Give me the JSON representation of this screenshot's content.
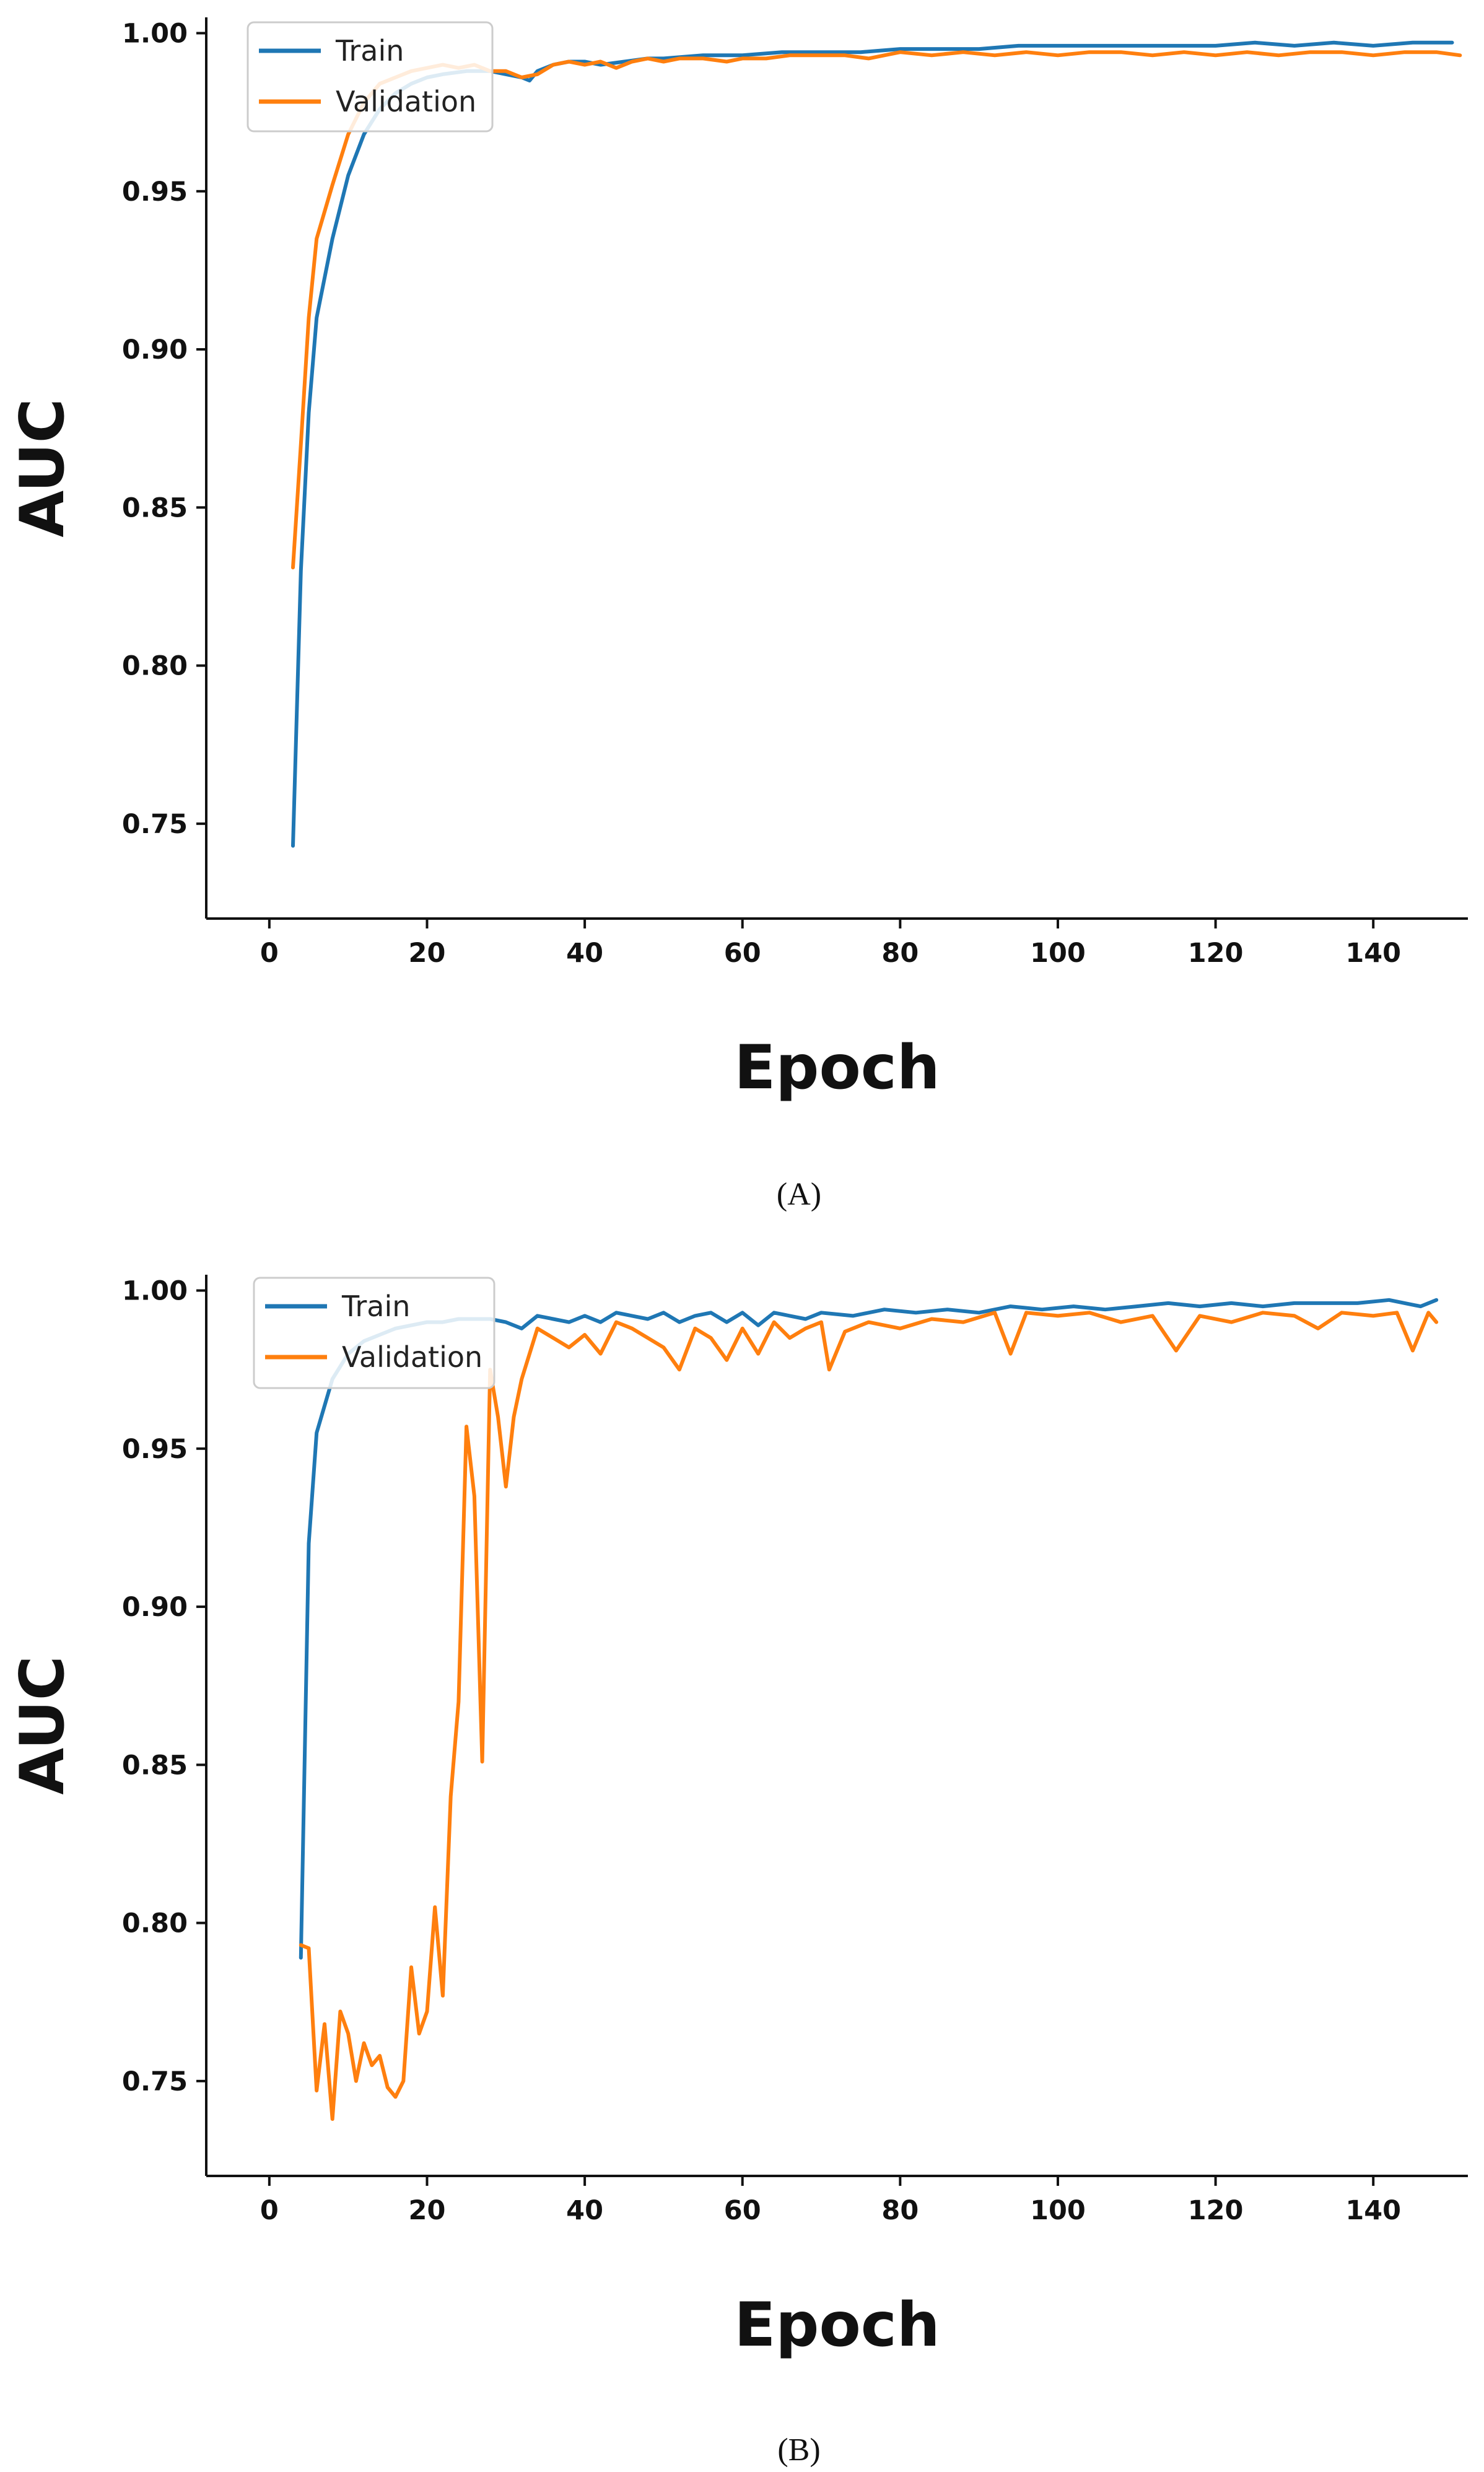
{
  "chart_data": [
    {
      "type": "line",
      "panel_label": "(A)",
      "xlabel": "Epoch",
      "ylabel": "AUC",
      "xlim": [
        -8,
        152
      ],
      "ylim": [
        0.72,
        1.005
      ],
      "xticks": [
        0,
        20,
        40,
        60,
        80,
        100,
        120,
        140
      ],
      "yticks": [
        0.75,
        0.8,
        0.85,
        0.9,
        0.95,
        1.0
      ],
      "legend_position": "top-left",
      "grid": false,
      "series": [
        {
          "name": "Train",
          "color": "#1f77b4",
          "x": [
            3,
            4,
            5,
            6,
            8,
            10,
            12,
            14,
            16,
            18,
            20,
            22,
            25,
            28,
            30,
            32,
            33,
            34,
            36,
            38,
            40,
            42,
            45,
            48,
            50,
            55,
            60,
            65,
            70,
            75,
            80,
            85,
            90,
            95,
            100,
            105,
            110,
            115,
            120,
            125,
            130,
            135,
            140,
            145,
            150
          ],
          "values": [
            0.743,
            0.83,
            0.88,
            0.91,
            0.935,
            0.955,
            0.968,
            0.976,
            0.981,
            0.984,
            0.986,
            0.987,
            0.988,
            0.988,
            0.987,
            0.986,
            0.985,
            0.988,
            0.99,
            0.991,
            0.991,
            0.99,
            0.991,
            0.992,
            0.992,
            0.993,
            0.993,
            0.994,
            0.994,
            0.994,
            0.995,
            0.995,
            0.995,
            0.996,
            0.996,
            0.996,
            0.996,
            0.996,
            0.996,
            0.997,
            0.996,
            0.997,
            0.996,
            0.997,
            0.997
          ]
        },
        {
          "name": "Validation",
          "color": "#ff7f0e",
          "x": [
            3,
            4,
            5,
            6,
            8,
            10,
            12,
            14,
            16,
            18,
            20,
            22,
            24,
            26,
            28,
            30,
            32,
            34,
            36,
            38,
            40,
            42,
            44,
            46,
            48,
            50,
            52,
            55,
            58,
            60,
            63,
            66,
            70,
            73,
            76,
            80,
            84,
            88,
            92,
            96,
            100,
            104,
            108,
            112,
            116,
            120,
            124,
            128,
            132,
            136,
            140,
            144,
            148,
            151
          ],
          "values": [
            0.831,
            0.87,
            0.91,
            0.935,
            0.952,
            0.968,
            0.978,
            0.984,
            0.986,
            0.988,
            0.989,
            0.99,
            0.989,
            0.99,
            0.988,
            0.988,
            0.986,
            0.987,
            0.99,
            0.991,
            0.99,
            0.991,
            0.989,
            0.991,
            0.992,
            0.991,
            0.992,
            0.992,
            0.991,
            0.992,
            0.992,
            0.993,
            0.993,
            0.993,
            0.992,
            0.994,
            0.993,
            0.994,
            0.993,
            0.994,
            0.993,
            0.994,
            0.994,
            0.993,
            0.994,
            0.993,
            0.994,
            0.993,
            0.994,
            0.994,
            0.993,
            0.994,
            0.994,
            0.993
          ]
        }
      ]
    },
    {
      "type": "line",
      "panel_label": "(B)",
      "xlabel": "Epoch",
      "ylabel": "AUC",
      "xlim": [
        -8,
        152
      ],
      "ylim": [
        0.72,
        1.005
      ],
      "xticks": [
        0,
        20,
        40,
        60,
        80,
        100,
        120,
        140
      ],
      "yticks": [
        0.75,
        0.8,
        0.85,
        0.9,
        0.95,
        1.0
      ],
      "legend_position": "top-left",
      "grid": false,
      "series": [
        {
          "name": "Train",
          "color": "#1f77b4",
          "x": [
            4,
            5,
            6,
            8,
            10,
            12,
            14,
            16,
            18,
            20,
            22,
            24,
            26,
            28,
            30,
            32,
            34,
            36,
            38,
            40,
            42,
            44,
            46,
            48,
            50,
            52,
            54,
            56,
            58,
            60,
            62,
            64,
            66,
            68,
            70,
            74,
            78,
            82,
            86,
            90,
            94,
            98,
            102,
            106,
            110,
            114,
            118,
            122,
            126,
            130,
            134,
            138,
            142,
            146,
            148
          ],
          "values": [
            0.789,
            0.92,
            0.955,
            0.972,
            0.98,
            0.984,
            0.986,
            0.988,
            0.989,
            0.99,
            0.99,
            0.991,
            0.991,
            0.991,
            0.99,
            0.988,
            0.992,
            0.991,
            0.99,
            0.992,
            0.99,
            0.993,
            0.992,
            0.991,
            0.993,
            0.99,
            0.992,
            0.993,
            0.99,
            0.993,
            0.989,
            0.993,
            0.992,
            0.991,
            0.993,
            0.992,
            0.994,
            0.993,
            0.994,
            0.993,
            0.995,
            0.994,
            0.995,
            0.994,
            0.995,
            0.996,
            0.995,
            0.996,
            0.995,
            0.996,
            0.996,
            0.996,
            0.997,
            0.995,
            0.997
          ]
        },
        {
          "name": "Validation",
          "color": "#ff7f0e",
          "x": [
            4,
            5,
            6,
            7,
            8,
            9,
            10,
            11,
            12,
            13,
            14,
            15,
            16,
            17,
            18,
            19,
            20,
            21,
            22,
            23,
            24,
            25,
            26,
            27,
            28,
            29,
            30,
            31,
            32,
            34,
            36,
            38,
            40,
            42,
            44,
            46,
            48,
            50,
            52,
            54,
            56,
            58,
            60,
            62,
            64,
            66,
            68,
            70,
            71,
            73,
            76,
            80,
            84,
            88,
            92,
            94,
            96,
            100,
            104,
            108,
            112,
            115,
            118,
            122,
            126,
            130,
            133,
            136,
            140,
            143,
            145,
            147,
            148
          ],
          "values": [
            0.793,
            0.792,
            0.747,
            0.768,
            0.738,
            0.772,
            0.765,
            0.75,
            0.762,
            0.755,
            0.758,
            0.748,
            0.745,
            0.75,
            0.786,
            0.765,
            0.772,
            0.805,
            0.777,
            0.84,
            0.87,
            0.957,
            0.935,
            0.851,
            0.975,
            0.96,
            0.938,
            0.96,
            0.972,
            0.988,
            0.985,
            0.982,
            0.986,
            0.98,
            0.99,
            0.988,
            0.985,
            0.982,
            0.975,
            0.988,
            0.985,
            0.978,
            0.988,
            0.98,
            0.99,
            0.985,
            0.988,
            0.99,
            0.975,
            0.987,
            0.99,
            0.988,
            0.991,
            0.99,
            0.993,
            0.98,
            0.993,
            0.992,
            0.993,
            0.99,
            0.992,
            0.981,
            0.992,
            0.99,
            0.993,
            0.992,
            0.988,
            0.993,
            0.992,
            0.993,
            0.981,
            0.993,
            0.99
          ]
        }
      ]
    }
  ]
}
